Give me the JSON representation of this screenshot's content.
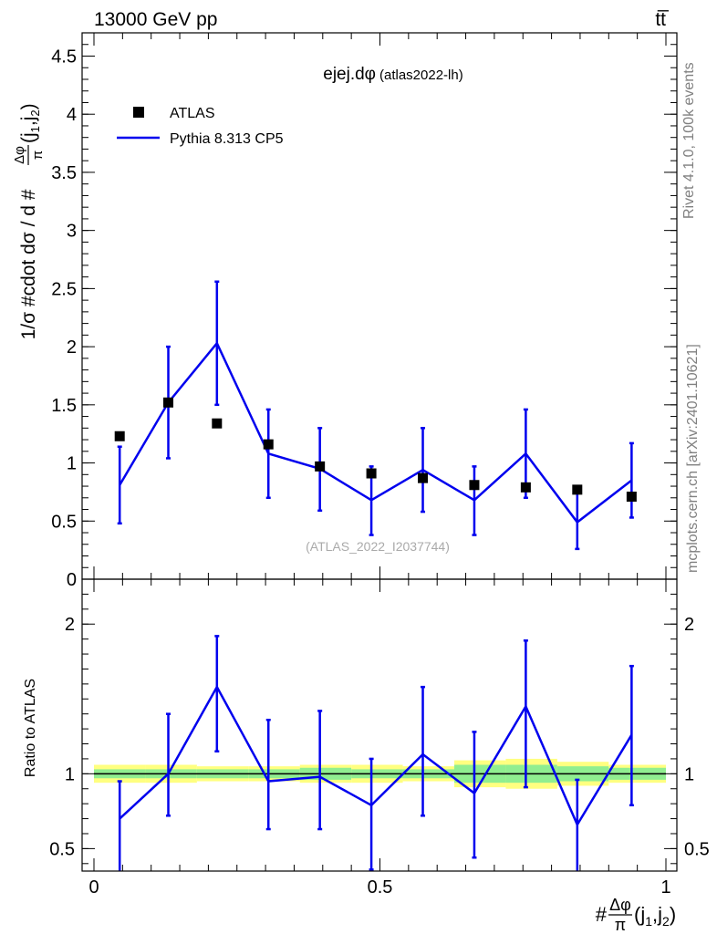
{
  "header": {
    "left": "13000 GeV pp",
    "right": "tt̅"
  },
  "side_labels": {
    "rivet": "Rivet 4.1.0,  100k events",
    "mcplots": "mcplots.cern.ch [arXiv:2401.10621]"
  },
  "colors": {
    "data": "#000000",
    "mc": "#0000ee",
    "band_inner": "#90ee90",
    "band_outer": "#ffff80"
  },
  "chart_data": [
    {
      "type": "line",
      "panel": "main",
      "title": "ejej.dφ",
      "subtitle": "(atlas2022-lh)",
      "watermark": "(ATLAS_2022_I2037744)",
      "ylabel_text": "1/σ #cdot dσ / d #",
      "ylabel_frac_num": "Δφ",
      "ylabel_frac_den": "π",
      "ylabel_tail": "(j",
      "ylabel_sub1": "1",
      "ylabel_comma": ",j",
      "ylabel_sub2": "2",
      "ylabel_close": ")",
      "xlim": [
        0,
        1
      ],
      "ylim": [
        0,
        4.7
      ],
      "y_ticks": [
        {
          "v": 0,
          "label": "0"
        },
        {
          "v": 0.5,
          "label": "0.5"
        },
        {
          "v": 1,
          "label": "1"
        },
        {
          "v": 1.5,
          "label": "1.5"
        },
        {
          "v": 2,
          "label": "2"
        },
        {
          "v": 2.5,
          "label": "2.5"
        },
        {
          "v": 3,
          "label": "3"
        },
        {
          "v": 3.5,
          "label": "3.5"
        },
        {
          "v": 4,
          "label": "4"
        },
        {
          "v": 4.5,
          "label": "4.5"
        }
      ],
      "legend": [
        {
          "name": "ATLAS",
          "marker": "square"
        },
        {
          "name": "Pythia 8.313 CP5",
          "marker": "line"
        }
      ],
      "series": [
        {
          "name": "ATLAS",
          "x": [
            0.045,
            0.13,
            0.215,
            0.305,
            0.395,
            0.485,
            0.575,
            0.665,
            0.755,
            0.845,
            0.94
          ],
          "values": [
            1.23,
            1.52,
            1.34,
            1.16,
            0.97,
            0.91,
            0.87,
            0.81,
            0.79,
            0.77,
            0.71
          ]
        },
        {
          "name": "Pythia 8.313 CP5",
          "x": [
            0.045,
            0.13,
            0.215,
            0.305,
            0.395,
            0.485,
            0.575,
            0.665,
            0.755,
            0.845,
            0.94
          ],
          "values": [
            0.81,
            1.52,
            2.03,
            1.08,
            0.95,
            0.68,
            0.94,
            0.68,
            1.08,
            0.49,
            0.85
          ],
          "err_low": [
            0.48,
            1.04,
            1.5,
            0.7,
            0.59,
            0.38,
            0.58,
            0.38,
            0.7,
            0.26,
            0.53
          ],
          "err_high": [
            1.14,
            2.0,
            2.56,
            1.46,
            1.3,
            0.97,
            1.3,
            0.97,
            1.46,
            0.74,
            1.17
          ]
        }
      ]
    },
    {
      "type": "line",
      "panel": "ratio",
      "ylabel": "Ratio to ATLAS",
      "xlabel_prefix": "#",
      "xlabel_frac_num": "Δφ",
      "xlabel_frac_den": "π",
      "xlabel_tail": "(j",
      "xlabel_sub1": "1",
      "xlabel_comma": ",j",
      "xlabel_sub2": "2",
      "xlabel_close": ")",
      "xlim": [
        0,
        1
      ],
      "ylim": [
        0.35,
        2.3
      ],
      "y_ticks": [
        {
          "v": 0.5,
          "label": "0.5"
        },
        {
          "v": 1,
          "label": "1"
        },
        {
          "v": 2,
          "label": "2"
        }
      ],
      "x_ticks": [
        {
          "v": 0,
          "label": "0"
        },
        {
          "v": 0.5,
          "label": "0.5"
        },
        {
          "v": 1,
          "label": "1"
        }
      ],
      "bin_edges": [
        0,
        0.09,
        0.18,
        0.27,
        0.36,
        0.45,
        0.54,
        0.63,
        0.72,
        0.81,
        0.9,
        1.0
      ],
      "band_inner_halfwidth": [
        0.03,
        0.03,
        0.03,
        0.03,
        0.04,
        0.03,
        0.03,
        0.06,
        0.06,
        0.05,
        0.04
      ],
      "band_outer_halfwidth": [
        0.06,
        0.06,
        0.05,
        0.05,
        0.06,
        0.06,
        0.05,
        0.09,
        0.1,
        0.08,
        0.06
      ],
      "series": [
        {
          "name": "Pythia 8.313 CP5",
          "x": [
            0.045,
            0.13,
            0.215,
            0.305,
            0.395,
            0.485,
            0.575,
            0.665,
            0.755,
            0.845,
            0.94
          ],
          "values": [
            0.7,
            1.0,
            1.58,
            0.95,
            0.98,
            0.79,
            1.13,
            0.87,
            1.45,
            0.66,
            1.26
          ],
          "err_low": [
            0.35,
            0.72,
            1.15,
            0.63,
            0.63,
            0.36,
            0.72,
            0.44,
            0.91,
            0.35,
            0.79
          ],
          "err_high": [
            0.95,
            1.4,
            1.92,
            1.36,
            1.42,
            1.1,
            1.58,
            1.28,
            1.89,
            0.96,
            1.72
          ]
        }
      ]
    }
  ]
}
